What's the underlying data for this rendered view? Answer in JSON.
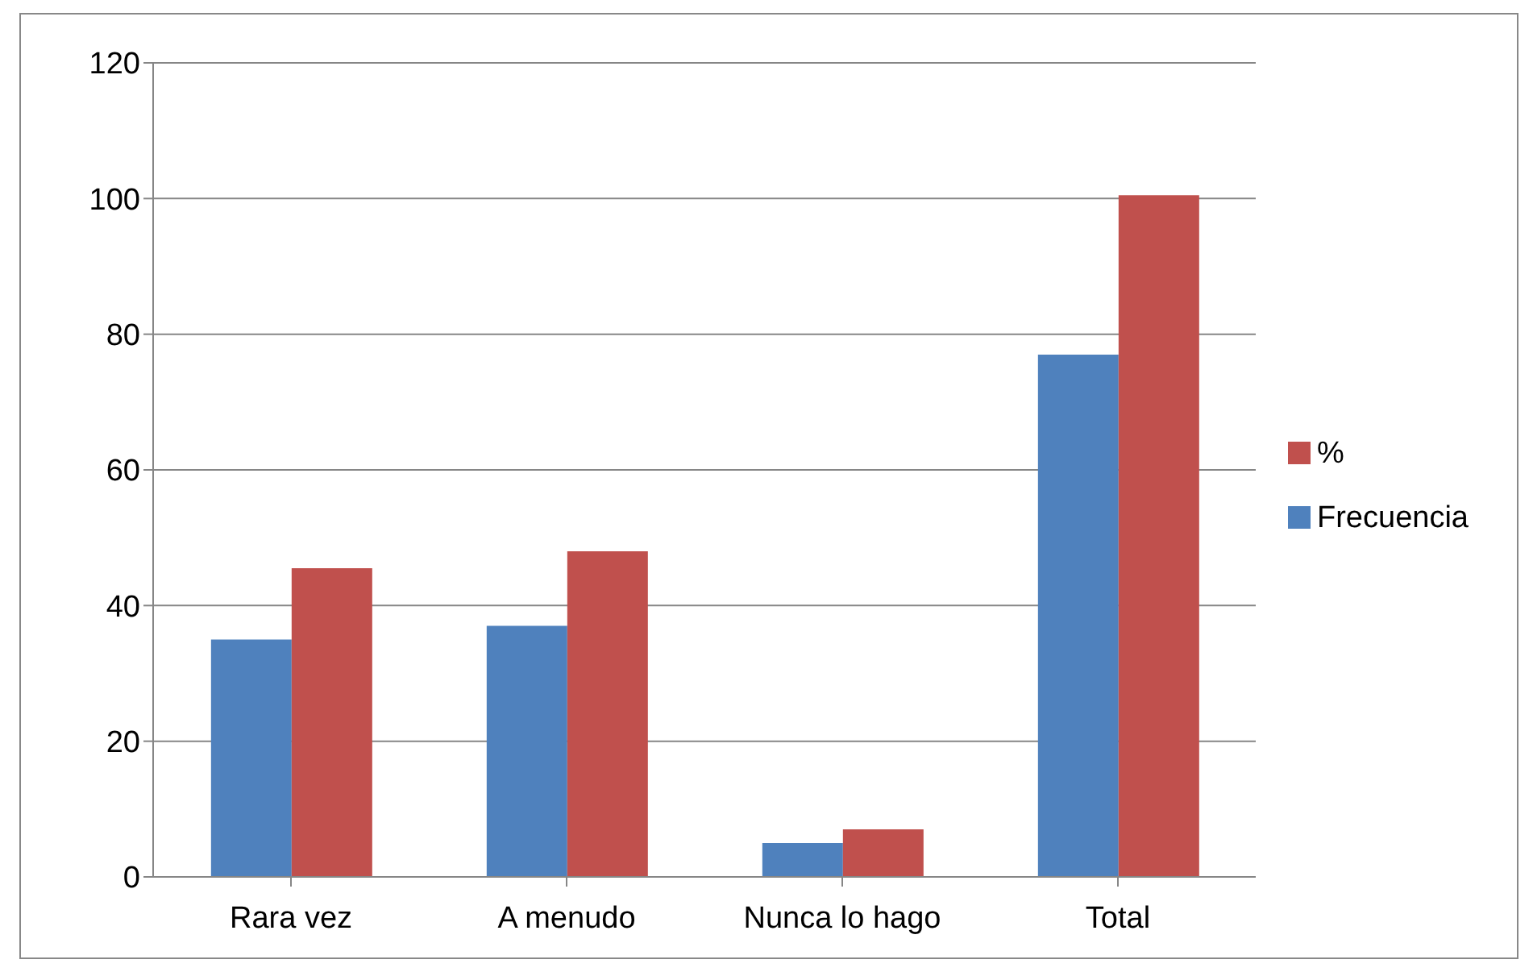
{
  "chart_data": {
    "type": "bar",
    "categories": [
      "Rara vez",
      "A menudo",
      "Nunca lo hago",
      "Total"
    ],
    "series": [
      {
        "name": "Frecuencia",
        "color": "#4f81bd",
        "values": [
          35,
          37,
          5,
          77
        ]
      },
      {
        "name": "%",
        "color": "#c0504d",
        "values": [
          45.5,
          48,
          7,
          100.5
        ]
      }
    ],
    "ylim": [
      0,
      120
    ],
    "yticks": [
      0,
      20,
      40,
      60,
      80,
      100,
      120
    ],
    "grid": "y",
    "legend": "right"
  }
}
